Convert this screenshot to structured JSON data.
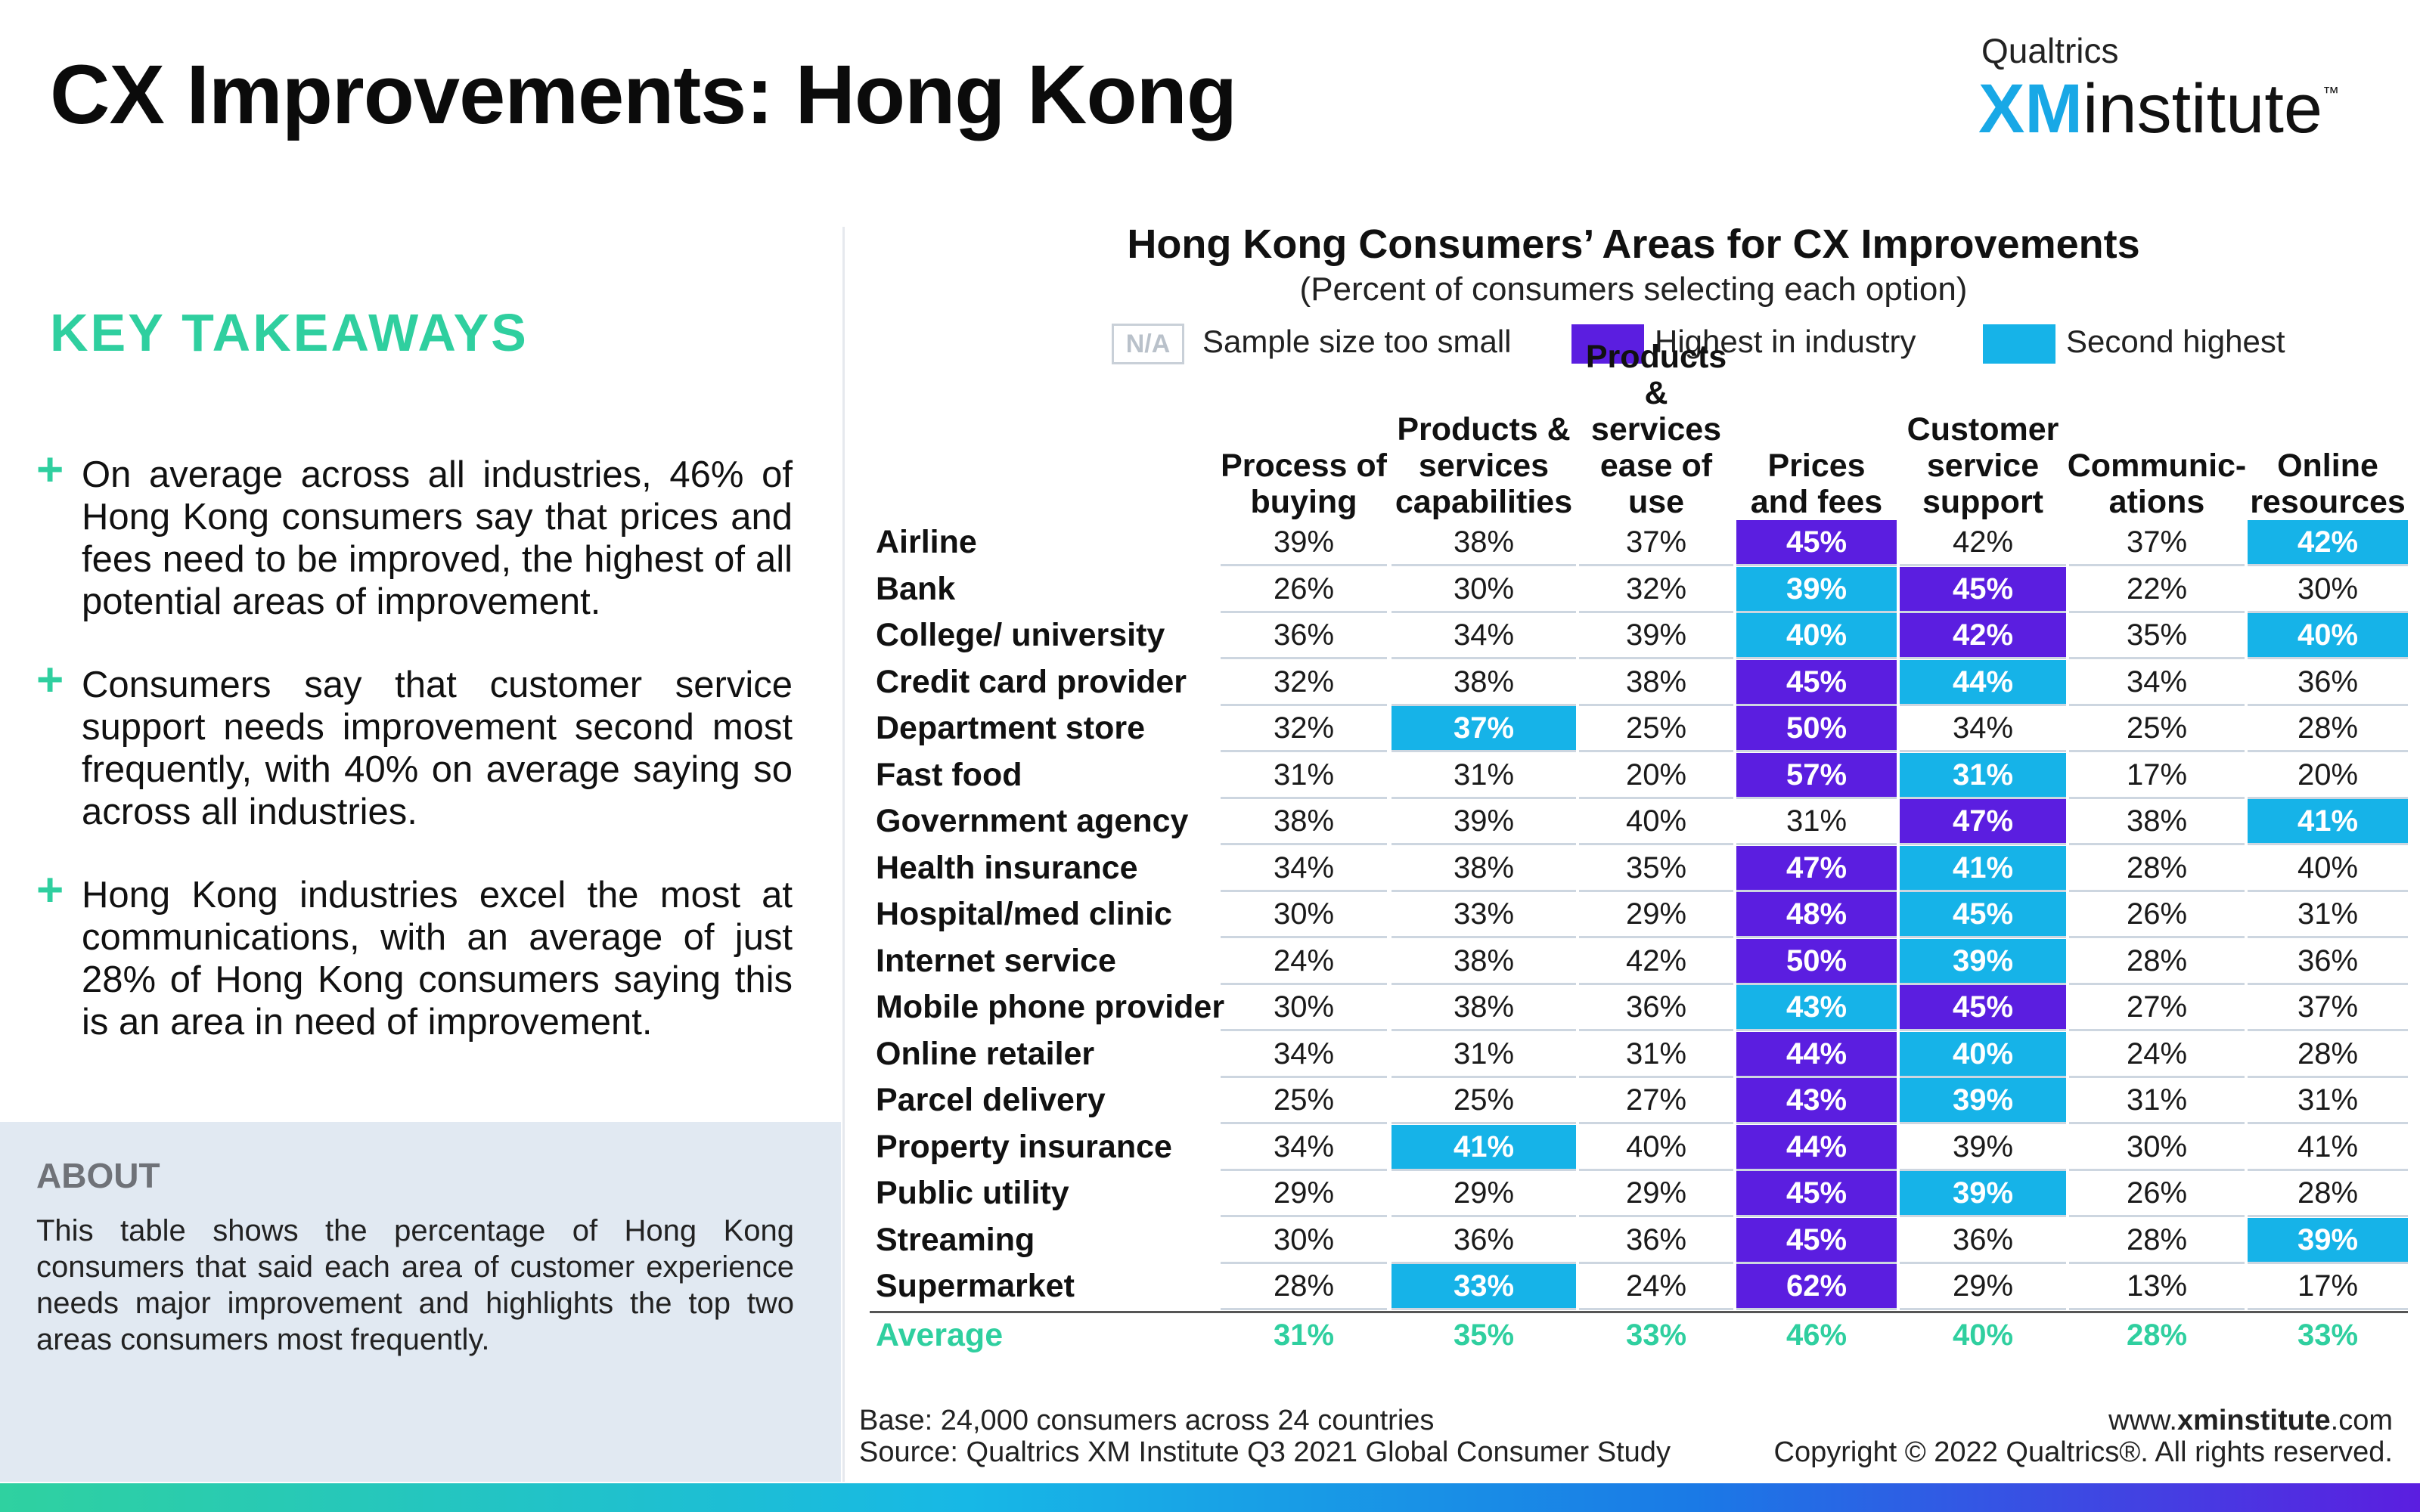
{
  "title": "CX Improvements: Hong Kong",
  "logo": {
    "brand": "Qualtrics",
    "xm": "XM",
    "institute": "institute",
    "tm": "™"
  },
  "takeaways": {
    "heading": "KEY TAKEAWAYS",
    "items": [
      "On average across all industries, 46% of Hong Kong consumers say that prices and fees need to be improved, the highest of all potential areas of improvement.",
      "Consumers say that customer service support needs improvement second most frequently, with 40% on average saying so across all industries.",
      "Hong Kong industries excel the most at communications, with an average of just 28% of Hong Kong consumers saying this is an area in need of improvement."
    ]
  },
  "about": {
    "heading": "ABOUT",
    "text": "This table shows the percentage of Hong Kong consumers that said each area of customer experience needs major improvement and highlights the top two areas consumers most frequently."
  },
  "chart": {
    "title": "Hong Kong Consumers’ Areas for CX Improvements",
    "subtitle": "(Percent of consumers selecting each option)",
    "legend": {
      "na_label": "N/A",
      "na_text": "Sample size too small",
      "highest": "Highest in industry",
      "second": "Second highest"
    },
    "columns": [
      "Process of buying",
      "Products & services capabilities",
      "Products & services ease of use",
      "Prices and fees",
      "Customer service support",
      "Communic-ations",
      "Online resources"
    ],
    "rows": [
      {
        "label": "Airline",
        "values": [
          "39%",
          "38%",
          "37%",
          "45%",
          "42%",
          "37%",
          "42%"
        ]
      },
      {
        "label": "Bank",
        "values": [
          "26%",
          "30%",
          "32%",
          "39%",
          "45%",
          "22%",
          "30%"
        ]
      },
      {
        "label": "College/ university",
        "values": [
          "36%",
          "34%",
          "39%",
          "40%",
          "42%",
          "35%",
          "40%"
        ]
      },
      {
        "label": "Credit card provider",
        "values": [
          "32%",
          "38%",
          "38%",
          "45%",
          "44%",
          "34%",
          "36%"
        ]
      },
      {
        "label": "Department store",
        "values": [
          "32%",
          "37%",
          "25%",
          "50%",
          "34%",
          "25%",
          "28%"
        ]
      },
      {
        "label": "Fast food",
        "values": [
          "31%",
          "31%",
          "20%",
          "57%",
          "31%",
          "17%",
          "20%"
        ]
      },
      {
        "label": "Government agency",
        "values": [
          "38%",
          "39%",
          "40%",
          "31%",
          "47%",
          "38%",
          "41%"
        ]
      },
      {
        "label": "Health insurance",
        "values": [
          "34%",
          "38%",
          "35%",
          "47%",
          "41%",
          "28%",
          "40%"
        ]
      },
      {
        "label": "Hospital/med clinic",
        "values": [
          "30%",
          "33%",
          "29%",
          "48%",
          "45%",
          "26%",
          "31%"
        ]
      },
      {
        "label": "Internet service",
        "values": [
          "24%",
          "38%",
          "42%",
          "50%",
          "39%",
          "28%",
          "36%"
        ]
      },
      {
        "label": "Mobile phone provider",
        "values": [
          "30%",
          "38%",
          "36%",
          "43%",
          "45%",
          "27%",
          "37%"
        ]
      },
      {
        "label": "Online retailer",
        "values": [
          "34%",
          "31%",
          "31%",
          "44%",
          "40%",
          "24%",
          "28%"
        ]
      },
      {
        "label": "Parcel delivery",
        "values": [
          "25%",
          "25%",
          "27%",
          "43%",
          "39%",
          "31%",
          "31%"
        ]
      },
      {
        "label": "Property insurance",
        "values": [
          "34%",
          "41%",
          "40%",
          "44%",
          "39%",
          "30%",
          "41%"
        ]
      },
      {
        "label": "Public utility",
        "values": [
          "29%",
          "29%",
          "29%",
          "45%",
          "39%",
          "26%",
          "28%"
        ]
      },
      {
        "label": "Streaming",
        "values": [
          "30%",
          "36%",
          "36%",
          "45%",
          "36%",
          "28%",
          "39%"
        ]
      },
      {
        "label": "Supermarket",
        "values": [
          "28%",
          "33%",
          "24%",
          "62%",
          "29%",
          "13%",
          "17%"
        ]
      }
    ],
    "average": {
      "label": "Average",
      "values": [
        "31%",
        "35%",
        "33%",
        "46%",
        "40%",
        "28%",
        "33%"
      ]
    },
    "highlights": {
      "highest": [
        [
          0,
          3
        ],
        [
          1,
          4
        ],
        [
          2,
          4
        ],
        [
          3,
          3
        ],
        [
          4,
          3
        ],
        [
          5,
          3
        ],
        [
          6,
          4
        ],
        [
          7,
          3
        ],
        [
          8,
          3
        ],
        [
          9,
          3
        ],
        [
          10,
          4
        ],
        [
          11,
          3
        ],
        [
          12,
          3
        ],
        [
          13,
          3
        ],
        [
          14,
          3
        ],
        [
          15,
          3
        ],
        [
          16,
          3
        ]
      ],
      "second": [
        [
          0,
          6
        ],
        [
          1,
          3
        ],
        [
          2,
          3
        ],
        [
          2,
          6
        ],
        [
          3,
          4
        ],
        [
          4,
          1
        ],
        [
          5,
          4
        ],
        [
          6,
          6
        ],
        [
          7,
          4
        ],
        [
          8,
          4
        ],
        [
          9,
          4
        ],
        [
          10,
          3
        ],
        [
          11,
          4
        ],
        [
          12,
          4
        ],
        [
          13,
          1
        ],
        [
          14,
          4
        ],
        [
          15,
          6
        ],
        [
          16,
          1
        ]
      ]
    },
    "colors": {
      "highest": "#5b1ee0",
      "second": "#16b3e8",
      "accent": "#2fcf9f"
    }
  },
  "footer": {
    "base": "Base: 24,000 consumers across 24 countries",
    "source": "Source: Qualtrics XM Institute Q3 2021 Global Consumer Study",
    "url_pre": "www.",
    "url_bold": "xminstitute",
    "url_post": ".com",
    "copyright": "Copyright © 2022 Qualtrics®. All rights reserved."
  }
}
